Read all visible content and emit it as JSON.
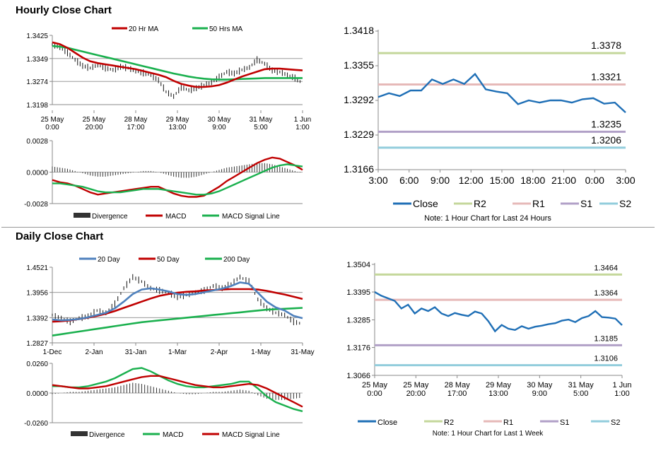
{
  "page": {
    "hourly_title": "Hourly Close Chart",
    "daily_title": "Daily Close Chart"
  },
  "colors": {
    "red": "#c00000",
    "green": "#1ab04e",
    "blue": "#4f81bd",
    "price_blue": "#1f6fb6",
    "r2": "#c4d79b",
    "r1": "#e6b9b8",
    "s1": "#b1a0c7",
    "s2": "#92cddc",
    "bar": "#333333",
    "axis": "#888888",
    "grid": "#8c8c8c"
  },
  "chart_data": [
    {
      "id": "hourly_price",
      "type": "line",
      "title": "Hourly Close Chart",
      "x_ticks": [
        "25 May\n0:00",
        "25 May\n20:00",
        "28 May\n17:00",
        "29 May\n13:00",
        "30 May\n9:00",
        "31 May\n5:00",
        "1 Jun\n1:00"
      ],
      "y_ticks": [
        "1.3425",
        "1.3349",
        "1.3274",
        "1.3198"
      ],
      "ylim": [
        1.3198,
        1.3425
      ],
      "grid": true,
      "legend": [
        {
          "label": "20 Hr MA",
          "color": "#c00000"
        },
        {
          "label": "50 Hrs MA",
          "color": "#1ab04e"
        }
      ],
      "price_series": [
        1.3395,
        1.3385,
        1.3368,
        1.3345,
        1.3325,
        1.3318,
        1.3328,
        1.3318,
        1.3312,
        1.3322,
        1.3318,
        1.3308,
        1.3302,
        1.3295,
        1.3278,
        1.324,
        1.3225,
        1.3255,
        1.3245,
        1.3252,
        1.3262,
        1.327,
        1.3288,
        1.3305,
        1.33,
        1.3312,
        1.332,
        1.3345,
        1.3332,
        1.331,
        1.3305,
        1.3295,
        1.3285,
        1.3268
      ],
      "series": [
        {
          "name": "20 Hr MA",
          "color": "#c00000",
          "values": [
            1.3402,
            1.3396,
            1.3384,
            1.3368,
            1.3352,
            1.334,
            1.3334,
            1.333,
            1.3326,
            1.3322,
            1.3318,
            1.3314,
            1.3308,
            1.3302,
            1.3296,
            1.3288,
            1.3276,
            1.3266,
            1.326,
            1.3256,
            1.3256,
            1.3258,
            1.3262,
            1.327,
            1.328,
            1.329,
            1.3298,
            1.3306,
            1.3314,
            1.3316,
            1.3316,
            1.3314,
            1.3312,
            1.331
          ]
        },
        {
          "name": "50 Hrs MA",
          "color": "#1ab04e",
          "values": [
            1.339,
            1.3388,
            1.3384,
            1.3378,
            1.3372,
            1.3366,
            1.336,
            1.3354,
            1.3348,
            1.3342,
            1.3336,
            1.333,
            1.3324,
            1.3318,
            1.3312,
            1.3306,
            1.33,
            1.3295,
            1.329,
            1.3286,
            1.3283,
            1.3281,
            1.328,
            1.328,
            1.3281,
            1.3282,
            1.3283,
            1.3284,
            1.3285,
            1.3285,
            1.3285,
            1.3285,
            1.3285,
            1.3285
          ]
        }
      ]
    },
    {
      "id": "hourly_macd",
      "type": "line",
      "y_ticks": [
        "0.0028",
        "0.0000",
        "-0.0028"
      ],
      "ylim": [
        -0.0028,
        0.0028
      ],
      "legend": [
        {
          "label": "Divergence",
          "color": "#333333",
          "kind": "bar"
        },
        {
          "label": "MACD",
          "color": "#c00000",
          "kind": "line"
        },
        {
          "label": "MACD Signal Line",
          "color": "#1ab04e",
          "kind": "line"
        }
      ],
      "divergence": [
        0.0005,
        0.0004,
        0.0003,
        0.0001,
        -0.0001,
        -0.0003,
        -0.0004,
        -0.0004,
        -0.0003,
        -0.0002,
        -0.0001,
        0.0,
        0.0001,
        0.0001,
        0.0,
        -0.0002,
        -0.0004,
        -0.0005,
        -0.0005,
        -0.0004,
        -0.0002,
        0.0,
        0.0002,
        0.0004,
        0.0005,
        0.0006,
        0.0007,
        0.0008,
        0.0008,
        0.0007,
        0.0005,
        0.0003,
        0.0001,
        -0.0001
      ],
      "series": [
        {
          "name": "MACD",
          "color": "#c00000",
          "values": [
            -0.0007,
            -0.0009,
            -0.001,
            -0.0012,
            -0.0015,
            -0.0018,
            -0.002,
            -0.0019,
            -0.0018,
            -0.0017,
            -0.0016,
            -0.0015,
            -0.0014,
            -0.0013,
            -0.0013,
            -0.0016,
            -0.0019,
            -0.0021,
            -0.0022,
            -0.0022,
            -0.0021,
            -0.0017,
            -0.0013,
            -0.0008,
            -0.0004,
            0.0,
            0.0004,
            0.0008,
            0.0011,
            0.0013,
            0.0012,
            0.0009,
            0.0006,
            0.0002
          ]
        },
        {
          "name": "MACD Signal Line",
          "color": "#1ab04e",
          "values": [
            -0.001,
            -0.001,
            -0.0011,
            -0.0012,
            -0.0013,
            -0.0015,
            -0.0017,
            -0.0018,
            -0.0018,
            -0.0018,
            -0.0017,
            -0.0016,
            -0.0015,
            -0.0015,
            -0.0015,
            -0.0016,
            -0.0017,
            -0.0018,
            -0.0019,
            -0.002,
            -0.002,
            -0.0019,
            -0.0017,
            -0.0014,
            -0.0011,
            -0.0008,
            -0.0005,
            -0.0002,
            0.0001,
            0.0004,
            0.0006,
            0.0007,
            0.0006,
            0.0005
          ]
        }
      ]
    },
    {
      "id": "hourly_24h",
      "type": "line",
      "x_ticks": [
        "3:00",
        "6:00",
        "9:00",
        "12:00",
        "15:00",
        "18:00",
        "21:00",
        "0:00",
        "3:00"
      ],
      "y_ticks": [
        "1.3418",
        "1.3355",
        "1.3292",
        "1.3229",
        "1.3166"
      ],
      "ylim": [
        1.3166,
        1.3418
      ],
      "legend": [
        {
          "label": "Close",
          "color": "#1f6fb6"
        },
        {
          "label": "R2",
          "color": "#c4d79b"
        },
        {
          "label": "R1",
          "color": "#e6b9b8"
        },
        {
          "label": "S1",
          "color": "#b1a0c7"
        },
        {
          "label": "S2",
          "color": "#92cddc"
        }
      ],
      "levels": [
        {
          "name": "R2",
          "value": 1.3378,
          "label": "1.3378",
          "color": "#c4d79b"
        },
        {
          "name": "R1",
          "value": 1.3321,
          "label": "1.3321",
          "color": "#e6b9b8"
        },
        {
          "name": "S1",
          "value": 1.3235,
          "label": "1.3235",
          "color": "#b1a0c7"
        },
        {
          "name": "S2",
          "value": 1.3206,
          "label": "1.3206",
          "color": "#92cddc"
        }
      ],
      "close": [
        1.3298,
        1.3305,
        1.33,
        1.331,
        1.331,
        1.333,
        1.3322,
        1.333,
        1.3322,
        1.334,
        1.3312,
        1.3308,
        1.3305,
        1.3285,
        1.3292,
        1.3288,
        1.3292,
        1.3292,
        1.3288,
        1.3294,
        1.3296,
        1.3286,
        1.3288,
        1.327
      ],
      "note": "Note: 1 Hour Chart for Last 24 Hours"
    },
    {
      "id": "daily_price",
      "type": "line",
      "title": "Daily Close Chart",
      "x_ticks": [
        "1-Dec",
        "2-Jan",
        "31-Jan",
        "1-Mar",
        "2-Apr",
        "1-May",
        "31-May"
      ],
      "y_ticks": [
        "1.4521",
        "1.3956",
        "1.3392",
        "1.2827"
      ],
      "ylim": [
        1.2827,
        1.4521
      ],
      "grid": true,
      "legend": [
        {
          "label": "20 Day",
          "color": "#4f81bd"
        },
        {
          "label": "50 Day",
          "color": "#c00000"
        },
        {
          "label": "200 Day",
          "color": "#1ab04e"
        }
      ],
      "price_series": [
        1.345,
        1.338,
        1.33,
        1.338,
        1.342,
        1.355,
        1.35,
        1.37,
        1.405,
        1.43,
        1.42,
        1.405,
        1.4,
        1.395,
        1.385,
        1.39,
        1.395,
        1.4,
        1.41,
        1.405,
        1.415,
        1.43,
        1.42,
        1.38,
        1.36,
        1.35,
        1.345,
        1.33,
        1.325
      ],
      "series": [
        {
          "name": "20 Day",
          "color": "#4f81bd",
          "values": [
            1.335,
            1.333,
            1.334,
            1.336,
            1.34,
            1.345,
            1.35,
            1.36,
            1.375,
            1.392,
            1.402,
            1.405,
            1.402,
            1.398,
            1.392,
            1.39,
            1.392,
            1.396,
            1.4,
            1.404,
            1.41,
            1.418,
            1.415,
            1.395,
            1.375,
            1.362,
            1.355,
            1.343,
            1.338
          ]
        },
        {
          "name": "50 Day",
          "color": "#c00000",
          "values": [
            1.33,
            1.331,
            1.333,
            1.336,
            1.339,
            1.343,
            1.348,
            1.354,
            1.361,
            1.368,
            1.375,
            1.382,
            1.388,
            1.392,
            1.395,
            1.397,
            1.398,
            1.4,
            1.401,
            1.402,
            1.403,
            1.403,
            1.403,
            1.402,
            1.399,
            1.395,
            1.391,
            1.386,
            1.381
          ]
        },
        {
          "name": "200 Day",
          "color": "#1ab04e",
          "values": [
            1.299,
            1.302,
            1.305,
            1.308,
            1.311,
            1.314,
            1.317,
            1.32,
            1.323,
            1.326,
            1.329,
            1.331,
            1.333,
            1.335,
            1.337,
            1.339,
            1.341,
            1.343,
            1.345,
            1.347,
            1.349,
            1.351,
            1.353,
            1.355,
            1.357,
            1.358,
            1.359,
            1.36,
            1.361
          ]
        }
      ]
    },
    {
      "id": "daily_macd",
      "type": "line",
      "y_ticks": [
        "0.0260",
        "0.0000",
        "-0.0260"
      ],
      "ylim": [
        -0.026,
        0.026
      ],
      "legend": [
        {
          "label": "Divergence",
          "color": "#333333",
          "kind": "bar"
        },
        {
          "label": "MACD",
          "color": "#1ab04e",
          "kind": "line"
        },
        {
          "label": "MACD Signal Line",
          "color": "#c00000",
          "kind": "line"
        }
      ],
      "divergence": [
        -0.001,
        0.0,
        0.001,
        0.001,
        0.002,
        0.003,
        0.004,
        0.005,
        0.007,
        0.009,
        0.008,
        0.006,
        0.004,
        0.002,
        0.0,
        -0.001,
        -0.001,
        0.0,
        0.001,
        0.001,
        0.002,
        0.003,
        0.002,
        -0.002,
        -0.005,
        -0.006,
        -0.006,
        -0.005,
        -0.004
      ],
      "series": [
        {
          "name": "MACD",
          "color": "#1ab04e",
          "values": [
            0.006,
            0.006,
            0.005,
            0.005,
            0.006,
            0.008,
            0.01,
            0.013,
            0.017,
            0.021,
            0.022,
            0.019,
            0.015,
            0.011,
            0.008,
            0.006,
            0.005,
            0.005,
            0.006,
            0.007,
            0.008,
            0.01,
            0.01,
            0.004,
            -0.003,
            -0.008,
            -0.011,
            -0.014,
            -0.016
          ]
        },
        {
          "name": "MACD Signal Line",
          "color": "#c00000",
          "values": [
            0.007,
            0.006,
            0.005,
            0.004,
            0.004,
            0.005,
            0.006,
            0.008,
            0.01,
            0.012,
            0.014,
            0.015,
            0.015,
            0.013,
            0.011,
            0.009,
            0.007,
            0.006,
            0.005,
            0.005,
            0.006,
            0.007,
            0.008,
            0.007,
            0.004,
            0.0,
            -0.004,
            -0.008,
            -0.012
          ]
        }
      ]
    },
    {
      "id": "daily_week",
      "type": "line",
      "x_ticks": [
        "25 May\n0:00",
        "25 May\n20:00",
        "28 May\n17:00",
        "29 May\n13:00",
        "30 May\n9:00",
        "31 May\n5:00",
        "1 Jun\n1:00"
      ],
      "y_ticks": [
        "1.3504",
        "1.3395",
        "1.3285",
        "1.3176",
        "1.3066"
      ],
      "ylim": [
        1.3066,
        1.3504
      ],
      "legend": [
        {
          "label": "Close",
          "color": "#1f6fb6"
        },
        {
          "label": "R2",
          "color": "#c4d79b"
        },
        {
          "label": "R1",
          "color": "#e6b9b8"
        },
        {
          "label": "S1",
          "color": "#b1a0c7"
        },
        {
          "label": "S2",
          "color": "#92cddc"
        }
      ],
      "levels": [
        {
          "name": "R2",
          "value": 1.3464,
          "label": "1.3464",
          "color": "#c4d79b"
        },
        {
          "name": "R1",
          "value": 1.3364,
          "label": "1.3364",
          "color": "#e6b9b8"
        },
        {
          "name": "S1",
          "value": 1.3185,
          "label": "1.3185",
          "color": "#b1a0c7"
        },
        {
          "name": "S2",
          "value": 1.3106,
          "label": "1.3106",
          "color": "#92cddc"
        }
      ],
      "close": [
        1.3395,
        1.338,
        1.337,
        1.336,
        1.333,
        1.3345,
        1.331,
        1.333,
        1.332,
        1.3335,
        1.331,
        1.33,
        1.3312,
        1.3305,
        1.33,
        1.3318,
        1.331,
        1.328,
        1.324,
        1.3265,
        1.325,
        1.3245,
        1.326,
        1.325,
        1.3258,
        1.3262,
        1.3268,
        1.3272,
        1.3282,
        1.3286,
        1.3276,
        1.3292,
        1.33,
        1.332,
        1.3296,
        1.3294,
        1.329,
        1.3264
      ],
      "note": "Note: 1 Hour Chart for Last 1 Week"
    }
  ]
}
